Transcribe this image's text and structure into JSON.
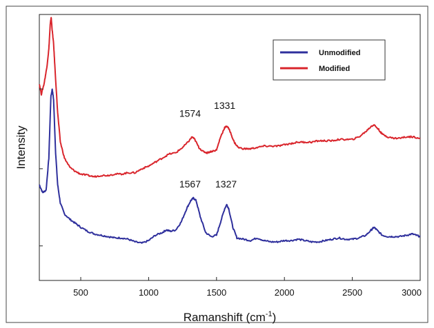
{
  "chart_data": {
    "type": "line",
    "xlabel": "Ramanshift (cm",
    "xlabel_sup": "-1",
    "xlabel_close": ")",
    "ylabel": "Intensity",
    "xlim": [
      195,
      3000
    ],
    "ylim": [
      0,
      1
    ],
    "grid": false,
    "legend_position": "top-right",
    "x_ticks": [
      500,
      1000,
      1500,
      2000,
      2500,
      3000
    ],
    "x_tick_labels": [
      "500",
      "1000",
      "1500",
      "2000",
      "2500",
      "3000"
    ],
    "y_ticks": [
      0.13,
      0.42,
      0.72
    ],
    "series": [
      {
        "name": "Unmodified",
        "color": "#2e2f9c",
        "points": [
          [
            195,
            0.36
          ],
          [
            220,
            0.33
          ],
          [
            245,
            0.34
          ],
          [
            265,
            0.46
          ],
          [
            280,
            0.69
          ],
          [
            290,
            0.72
          ],
          [
            300,
            0.68
          ],
          [
            315,
            0.48
          ],
          [
            330,
            0.36
          ],
          [
            350,
            0.29
          ],
          [
            380,
            0.25
          ],
          [
            420,
            0.23
          ],
          [
            460,
            0.215
          ],
          [
            500,
            0.2
          ],
          [
            550,
            0.185
          ],
          [
            600,
            0.175
          ],
          [
            650,
            0.17
          ],
          [
            700,
            0.165
          ],
          [
            750,
            0.16
          ],
          [
            800,
            0.16
          ],
          [
            850,
            0.155
          ],
          [
            900,
            0.145
          ],
          [
            950,
            0.14
          ],
          [
            1000,
            0.15
          ],
          [
            1050,
            0.17
          ],
          [
            1100,
            0.18
          ],
          [
            1130,
            0.19
          ],
          [
            1160,
            0.185
          ],
          [
            1200,
            0.19
          ],
          [
            1240,
            0.22
          ],
          [
            1280,
            0.27
          ],
          [
            1310,
            0.3
          ],
          [
            1330,
            0.31
          ],
          [
            1350,
            0.3
          ],
          [
            1380,
            0.24
          ],
          [
            1420,
            0.18
          ],
          [
            1460,
            0.165
          ],
          [
            1500,
            0.17
          ],
          [
            1530,
            0.22
          ],
          [
            1560,
            0.27
          ],
          [
            1575,
            0.285
          ],
          [
            1590,
            0.27
          ],
          [
            1620,
            0.2
          ],
          [
            1650,
            0.16
          ],
          [
            1700,
            0.155
          ],
          [
            1750,
            0.15
          ],
          [
            1800,
            0.16
          ],
          [
            1850,
            0.15
          ],
          [
            1900,
            0.145
          ],
          [
            1950,
            0.145
          ],
          [
            2000,
            0.15
          ],
          [
            2050,
            0.15
          ],
          [
            2100,
            0.155
          ],
          [
            2150,
            0.15
          ],
          [
            2200,
            0.145
          ],
          [
            2250,
            0.145
          ],
          [
            2300,
            0.15
          ],
          [
            2350,
            0.155
          ],
          [
            2400,
            0.16
          ],
          [
            2450,
            0.155
          ],
          [
            2500,
            0.155
          ],
          [
            2550,
            0.16
          ],
          [
            2600,
            0.17
          ],
          [
            2640,
            0.19
          ],
          [
            2660,
            0.2
          ],
          [
            2680,
            0.19
          ],
          [
            2720,
            0.17
          ],
          [
            2760,
            0.165
          ],
          [
            2800,
            0.165
          ],
          [
            2850,
            0.165
          ],
          [
            2900,
            0.17
          ],
          [
            2940,
            0.175
          ],
          [
            2970,
            0.17
          ],
          [
            3000,
            0.165
          ]
        ]
      },
      {
        "name": "Modified",
        "color": "#d9242b",
        "points": [
          [
            195,
            0.74
          ],
          [
            210,
            0.7
          ],
          [
            230,
            0.74
          ],
          [
            250,
            0.8
          ],
          [
            265,
            0.87
          ],
          [
            275,
            0.96
          ],
          [
            282,
            0.99
          ],
          [
            290,
            0.94
          ],
          [
            300,
            0.89
          ],
          [
            310,
            0.8
          ],
          [
            330,
            0.63
          ],
          [
            350,
            0.52
          ],
          [
            380,
            0.46
          ],
          [
            420,
            0.425
          ],
          [
            460,
            0.41
          ],
          [
            500,
            0.4
          ],
          [
            550,
            0.395
          ],
          [
            600,
            0.39
          ],
          [
            650,
            0.395
          ],
          [
            700,
            0.395
          ],
          [
            750,
            0.4
          ],
          [
            800,
            0.4
          ],
          [
            850,
            0.405
          ],
          [
            900,
            0.405
          ],
          [
            950,
            0.42
          ],
          [
            1000,
            0.43
          ],
          [
            1050,
            0.445
          ],
          [
            1100,
            0.46
          ],
          [
            1150,
            0.475
          ],
          [
            1200,
            0.48
          ],
          [
            1250,
            0.5
          ],
          [
            1290,
            0.52
          ],
          [
            1320,
            0.54
          ],
          [
            1340,
            0.53
          ],
          [
            1370,
            0.5
          ],
          [
            1400,
            0.485
          ],
          [
            1430,
            0.48
          ],
          [
            1460,
            0.485
          ],
          [
            1500,
            0.49
          ],
          [
            1530,
            0.54
          ],
          [
            1560,
            0.575
          ],
          [
            1580,
            0.58
          ],
          [
            1600,
            0.56
          ],
          [
            1630,
            0.52
          ],
          [
            1660,
            0.5
          ],
          [
            1700,
            0.495
          ],
          [
            1750,
            0.495
          ],
          [
            1800,
            0.5
          ],
          [
            1850,
            0.505
          ],
          [
            1900,
            0.505
          ],
          [
            1950,
            0.505
          ],
          [
            2000,
            0.51
          ],
          [
            2050,
            0.515
          ],
          [
            2100,
            0.52
          ],
          [
            2150,
            0.52
          ],
          [
            2200,
            0.52
          ],
          [
            2250,
            0.525
          ],
          [
            2300,
            0.525
          ],
          [
            2350,
            0.525
          ],
          [
            2400,
            0.53
          ],
          [
            2450,
            0.53
          ],
          [
            2500,
            0.53
          ],
          [
            2550,
            0.54
          ],
          [
            2600,
            0.56
          ],
          [
            2640,
            0.58
          ],
          [
            2660,
            0.585
          ],
          [
            2690,
            0.57
          ],
          [
            2720,
            0.55
          ],
          [
            2760,
            0.54
          ],
          [
            2800,
            0.535
          ],
          [
            2850,
            0.535
          ],
          [
            2900,
            0.54
          ],
          [
            2950,
            0.54
          ],
          [
            3000,
            0.535
          ]
        ]
      }
    ],
    "annotations": [
      {
        "text": "1574",
        "x": 1305,
        "y": 0.615
      },
      {
        "text": "1331",
        "x": 1560,
        "y": 0.645
      },
      {
        "text": "1567",
        "x": 1305,
        "y": 0.35
      },
      {
        "text": "1327",
        "x": 1570,
        "y": 0.35
      }
    ]
  }
}
